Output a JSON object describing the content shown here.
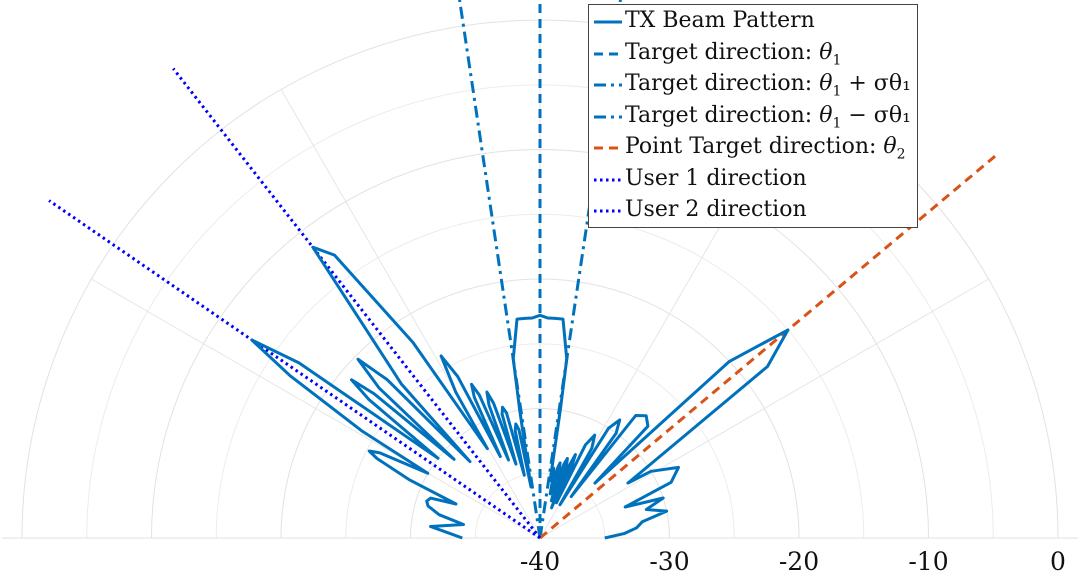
{
  "chart_data": {
    "type": "polar-line",
    "r_axis": {
      "ticks": [
        -40,
        -30,
        -20,
        -10,
        0
      ],
      "tick_labels": [
        "-40",
        "-30",
        "-20",
        "-10",
        "0"
      ],
      "range": [
        -40,
        0
      ]
    },
    "angle_range": [
      -90,
      90
    ],
    "grid": true,
    "legend_position": "top-right",
    "series": [
      {
        "name": "TX Beam Pattern",
        "style": "solid",
        "color": "#0072BD",
        "points": [
          [
            -90,
            -34
          ],
          [
            -87,
            -33
          ],
          [
            -84,
            -31.5
          ],
          [
            -80,
            -34
          ],
          [
            -77,
            -32
          ],
          [
            -74,
            -31
          ],
          [
            -72,
            -30.8
          ],
          [
            -70,
            -31
          ],
          [
            -68,
            -33
          ],
          [
            -66,
            -29
          ],
          [
            -64,
            -26
          ],
          [
            -63,
            -25.2
          ],
          [
            -62,
            -26
          ],
          [
            -60,
            -30
          ],
          [
            -59,
            -24
          ],
          [
            -57,
            -17
          ],
          [
            -55.5,
            -13
          ],
          [
            -54,
            -17
          ],
          [
            -52,
            -30
          ],
          [
            -51,
            -23
          ],
          [
            -50,
            -21
          ],
          [
            -49,
            -23
          ],
          [
            -47.5,
            -31
          ],
          [
            -47,
            -23
          ],
          [
            -45.5,
            -20.3
          ],
          [
            -44,
            -23
          ],
          [
            -42.5,
            -32
          ],
          [
            -42,
            -24
          ],
          [
            -38,
            -11.5
          ],
          [
            -36,
            -13
          ],
          [
            -33,
            -22
          ],
          [
            -30.5,
            -32
          ],
          [
            -30,
            -27
          ],
          [
            -28.5,
            -24
          ],
          [
            -27,
            -26
          ],
          [
            -26,
            -33
          ],
          [
            -25,
            -28
          ],
          [
            -24,
            -27
          ],
          [
            -23,
            -28
          ],
          [
            -22,
            -33.5
          ],
          [
            -21,
            -29
          ],
          [
            -20,
            -28
          ],
          [
            -19,
            -29
          ],
          [
            -18,
            -34
          ],
          [
            -17,
            -30
          ],
          [
            -16,
            -29.5
          ],
          [
            -15,
            -30
          ],
          [
            -14,
            -35
          ],
          [
            -13,
            -31.5
          ],
          [
            -12,
            -31
          ],
          [
            -11,
            -31.5
          ],
          [
            -10,
            -36
          ],
          [
            -9,
            -30
          ],
          [
            -8.5,
            -26
          ],
          [
            -8,
            -25.5
          ],
          [
            -6,
            -23
          ],
          [
            -4,
            -23
          ],
          [
            -2,
            -23
          ],
          [
            0,
            -22.8
          ],
          [
            2,
            -23
          ],
          [
            4,
            -23
          ],
          [
            6,
            -23
          ],
          [
            8,
            -25.5
          ],
          [
            8.5,
            -26
          ],
          [
            9,
            -30
          ],
          [
            10,
            -35.5
          ],
          [
            11,
            -34.5
          ],
          [
            12,
            -35
          ],
          [
            13,
            -36.5
          ],
          [
            14,
            -34.5
          ],
          [
            15,
            -34
          ],
          [
            16,
            -34.5
          ],
          [
            17,
            -37
          ],
          [
            18,
            -34
          ],
          [
            19,
            -33.5
          ],
          [
            20,
            -34
          ],
          [
            21,
            -37.5
          ],
          [
            22,
            -34
          ],
          [
            23,
            -33
          ],
          [
            24,
            -34
          ],
          [
            25,
            -37
          ],
          [
            26,
            -32
          ],
          [
            28,
            -31
          ],
          [
            30,
            -32
          ],
          [
            31,
            -37
          ],
          [
            32,
            -30
          ],
          [
            34,
            -29
          ],
          [
            36,
            -30
          ],
          [
            37,
            -36
          ],
          [
            38,
            -28
          ],
          [
            41,
            -27.5
          ],
          [
            44,
            -28
          ],
          [
            45,
            -34
          ],
          [
            47,
            -20
          ],
          [
            50,
            -15
          ],
          [
            53,
            -18
          ],
          [
            58,
            -32
          ],
          [
            59,
            -30
          ],
          [
            63,
            -28
          ],
          [
            67,
            -29
          ],
          [
            70,
            -33
          ],
          [
            72,
            -30
          ],
          [
            75,
            -31.5
          ],
          [
            78,
            -30
          ],
          [
            81,
            -32
          ],
          [
            84,
            -32.5
          ],
          [
            87,
            -33.5
          ],
          [
            90,
            -35
          ]
        ]
      },
      {
        "name": "Target direction: θ1",
        "style": "dashed",
        "color": "#0072BD",
        "angle": 0
      },
      {
        "name": "Target direction: θ1 + σθ1",
        "style": "dashdot",
        "color": "#0072BD",
        "angle": 8.5
      },
      {
        "name": "Target direction: θ1 − σθ1",
        "style": "dashdot",
        "color": "#0072BD",
        "angle": -8.5
      },
      {
        "name": "Point Target direction: θ2",
        "style": "dashed",
        "color": "#D95319",
        "angle": 50
      },
      {
        "name": "User 1 direction",
        "style": "dotted",
        "color": "#0000FF",
        "angle": -55.5
      },
      {
        "name": "User 2 direction",
        "style": "dotted",
        "color": "#0000FF",
        "angle": -38
      }
    ]
  },
  "legend": {
    "items": [
      {
        "main": "TX Beam Pattern",
        "sym": "",
        "sub": "",
        "rest": ""
      },
      {
        "main": "Target direction: ",
        "sym": "θ",
        "sub": "1",
        "rest": ""
      },
      {
        "main": "Target direction: ",
        "sym": "θ",
        "sub": "1",
        "rest": " + σθ₁"
      },
      {
        "main": "Target direction: ",
        "sym": "θ",
        "sub": "1",
        "rest": " − σθ₁"
      },
      {
        "main": "Point Target direction: ",
        "sym": "θ",
        "sub": "2",
        "rest": ""
      },
      {
        "main": "User 1 direction",
        "sym": "",
        "sub": "",
        "rest": ""
      },
      {
        "main": "User 2 direction",
        "sym": "",
        "sub": "",
        "rest": ""
      }
    ]
  }
}
